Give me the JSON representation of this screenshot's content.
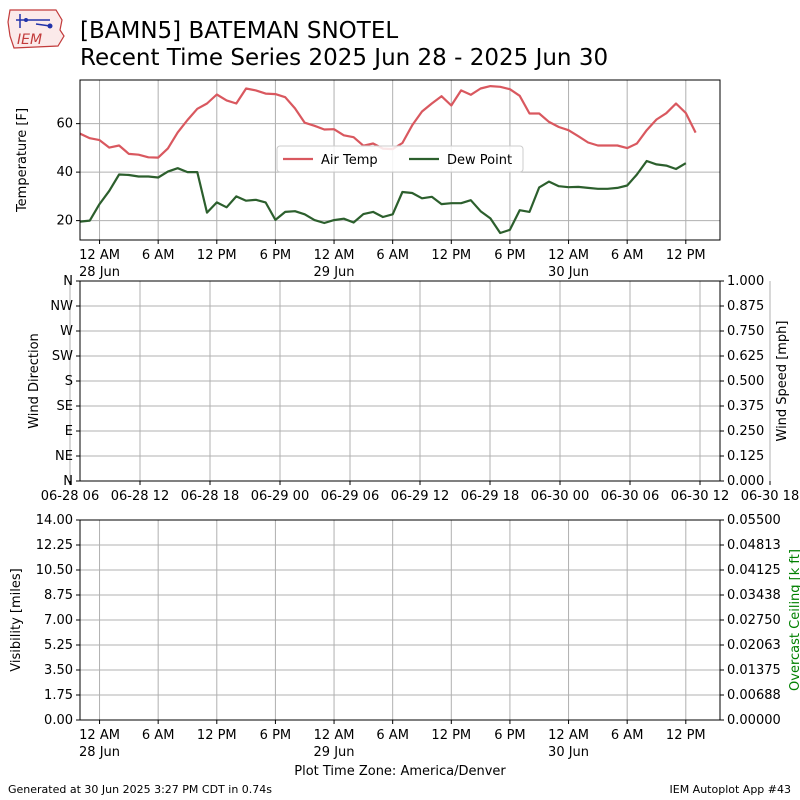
{
  "header": {
    "title_line1": "[BAMN5] BATEMAN SNOTEL",
    "title_line2": "Recent Time Series 2025 Jun 28 - 2025 Jun 30",
    "logo_text": "IEM"
  },
  "footer": {
    "generated": "Generated at 30 Jun 2025 3:27 PM CDT in 0.74s",
    "app": "IEM Autoplot App #43",
    "timezone_label": "Plot Time Zone: America/Denver"
  },
  "colors": {
    "air_temp": "#d9585f",
    "dew_point": "#2c5f2d",
    "grid": "#b0b0b0",
    "ceiling_label": "#008000"
  },
  "chart_data": [
    {
      "type": "line",
      "ylabel": "Temperature [F]",
      "ylim": [
        12,
        78
      ],
      "yticks": [
        20,
        40,
        60
      ],
      "xlim_hours": [
        -2,
        63.5
      ],
      "x_tick_hours": [
        0,
        6,
        12,
        18,
        24,
        30,
        36,
        42,
        48,
        54,
        60
      ],
      "x_tick_labels": [
        "12 AM",
        "6 AM",
        "12 PM",
        "6 PM",
        "12 AM",
        "6 AM",
        "12 PM",
        "6 PM",
        "12 AM",
        "6 AM",
        "12 PM"
      ],
      "x_day_labels": [
        {
          "hour": 0,
          "label": "28 Jun"
        },
        {
          "hour": 24,
          "label": "29 Jun"
        },
        {
          "hour": 48,
          "label": "30 Jun"
        }
      ],
      "grid": true,
      "legend_position": "center",
      "series": [
        {
          "name": "Air Temp",
          "x_start_hour": -2,
          "x_step_hours": 1,
          "values": [
            55.9,
            54.0,
            53.2,
            50.1,
            51.0,
            47.5,
            47.2,
            46.1,
            46.0,
            49.8,
            56.4,
            61.5,
            66.1,
            68.3,
            72.0,
            69.6,
            68.3,
            74.5,
            73.7,
            72.4,
            72.2,
            70.9,
            66.3,
            60.4,
            59.1,
            57.6,
            57.7,
            55.2,
            54.4,
            50.9,
            51.8,
            49.7,
            49.5,
            52.0,
            59.3,
            65.0,
            68.3,
            71.3,
            67.5,
            73.7,
            71.9,
            74.5,
            75.5,
            75.2,
            74.2,
            71.5,
            64.2,
            64.2,
            60.7,
            58.6,
            57.3,
            54.8,
            52.2,
            51.0,
            51.0,
            51.0,
            49.9,
            51.8,
            57.3,
            61.7,
            64.3,
            68.3,
            64.4,
            56.3
          ]
        },
        {
          "name": "Dew Point",
          "x_start_hour": -2,
          "x_step_hours": 1,
          "values": [
            19.6,
            20.0,
            26.8,
            32.3,
            39.0,
            38.8,
            38.2,
            38.2,
            37.8,
            40.2,
            41.6,
            40.0,
            40.0,
            23.3,
            27.5,
            25.5,
            30.0,
            28.2,
            28.6,
            27.5,
            20.3,
            23.6,
            23.9,
            22.6,
            20.2,
            19.0,
            20.2,
            20.8,
            19.2,
            22.7,
            23.6,
            21.5,
            22.6,
            31.8,
            31.4,
            29.2,
            29.8,
            26.8,
            27.2,
            27.2,
            28.4,
            23.9,
            20.9,
            14.9,
            16.2,
            24.3,
            23.6,
            33.7,
            36.1,
            34.2,
            33.8,
            33.9,
            33.5,
            33.1,
            33.1,
            33.5,
            34.5,
            39.0,
            44.6,
            43.2,
            42.7,
            41.3,
            43.7
          ]
        }
      ]
    },
    {
      "type": "line",
      "ylabel": "Wind Direction",
      "y_right_label": "Wind Speed [mph]",
      "y_labels": [
        "N",
        "NE",
        "E",
        "SE",
        "S",
        "SW",
        "W",
        "NW",
        "N"
      ],
      "y_right_ticks": [
        "0.000",
        "0.125",
        "0.250",
        "0.375",
        "0.500",
        "0.625",
        "0.750",
        "0.875",
        "1.000"
      ],
      "x_tick_labels": [
        "06-28 06",
        "06-28 12",
        "06-28 18",
        "06-29 00",
        "06-29 06",
        "06-29 12",
        "06-29 18",
        "06-30 00",
        "06-30 06",
        "06-30 12",
        "06-30 18"
      ],
      "x_tick_positions": [
        70,
        140,
        210,
        280,
        350,
        420,
        490,
        560,
        630,
        700,
        770
      ],
      "grid": true,
      "series": []
    },
    {
      "type": "line",
      "ylabel": "Visibility [miles]",
      "y_right_label": "Overcast Ceiling [k ft]",
      "y_left_ticks": [
        "0.00",
        "1.75",
        "3.50",
        "5.25",
        "7.00",
        "8.75",
        "10.50",
        "12.25",
        "14.00"
      ],
      "y_right_ticks": [
        "0.00000",
        "0.00688",
        "0.01375",
        "0.02063",
        "0.02750",
        "0.03438",
        "0.04125",
        "0.04813",
        "0.05500"
      ],
      "x_tick_hours": [
        0,
        6,
        12,
        18,
        24,
        30,
        36,
        42,
        48,
        54,
        60
      ],
      "x_tick_labels": [
        "12 AM",
        "6 AM",
        "12 PM",
        "6 PM",
        "12 AM",
        "6 AM",
        "12 PM",
        "6 PM",
        "12 AM",
        "6 AM",
        "12 PM"
      ],
      "x_day_labels": [
        {
          "hour": 0,
          "label": "28 Jun"
        },
        {
          "hour": 24,
          "label": "29 Jun"
        },
        {
          "hour": 48,
          "label": "30 Jun"
        }
      ],
      "grid": true,
      "series": []
    }
  ]
}
